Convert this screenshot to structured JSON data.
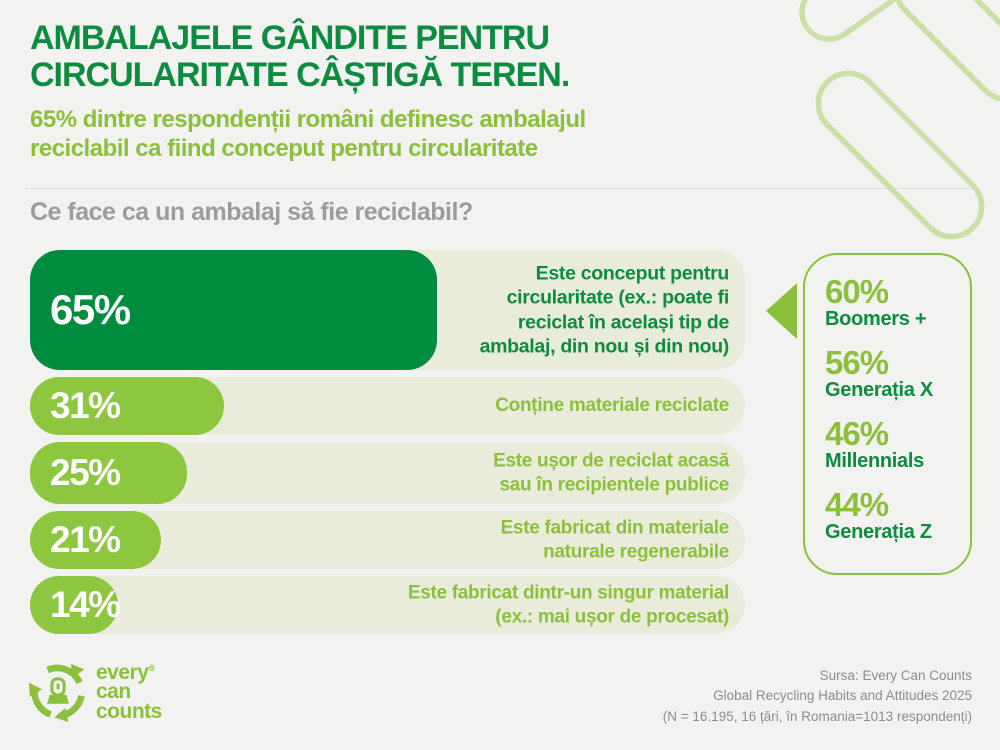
{
  "header": {
    "title_line1": "AMBALAJELE GÂNDITE PENTRU",
    "title_line2": "CIRCULARITATE CÂȘTIGĂ TEREN.",
    "subtitle_line1": "65% dintre respondenții români definesc ambalajul",
    "subtitle_line2": "reciclabil ca fiind conceput pentru circularitate"
  },
  "question": "Ce face ca un ambalaj să fie reciclabil?",
  "chart_data": {
    "type": "bar",
    "orientation": "horizontal",
    "title": "Ce face ca un ambalaj să fie reciclabil?",
    "categories": [
      "Este conceput pentru circularitate (ex.: poate fi reciclat în același tip de ambalaj, din nou și din nou)",
      "Conține materiale reciclate",
      "Este ușor de reciclat acasă sau în recipientele publice",
      "Este fabricat din materiale naturale regenerabile",
      "Este fabricat dintr-un singur material (ex.: mai ușor de procesat)"
    ],
    "values": [
      65,
      31,
      25,
      21,
      14
    ],
    "unit": "%",
    "xlim": [
      0,
      100
    ],
    "grid": false,
    "legend": false,
    "highlight_color": "#008c3e",
    "bar_color": "#8dc63f",
    "track_color": "#e9ecdb",
    "generations": [
      {
        "value": "60%",
        "label": "Boomers +"
      },
      {
        "value": "56%",
        "label": "Generația X"
      },
      {
        "value": "46%",
        "label": "Millennials"
      },
      {
        "value": "44%",
        "label": "Generația Z"
      }
    ],
    "generations_note": "breakdown of the 65% bar by generation"
  },
  "colors": {
    "dark_green": "#0d8c40",
    "light_green": "#8bc03c",
    "bar_dark": "#008c3e",
    "bar_light": "#8dc63f",
    "track": "#e9ecdb",
    "gray_text": "#9c9c9c",
    "source_gray": "#8d8d8d",
    "can_outline": "#cbdfa6",
    "background": "#f2f2f0"
  },
  "logo": {
    "line1": "every",
    "reg": "®",
    "line2": "can",
    "line3": "counts"
  },
  "source": {
    "line1": "Sursa: Every Can Counts",
    "line2": "Global Recycling Habits and Attitudes 2025",
    "line3": "(N = 16.195, 16 țări, în Romania=1013 respondenți)"
  }
}
